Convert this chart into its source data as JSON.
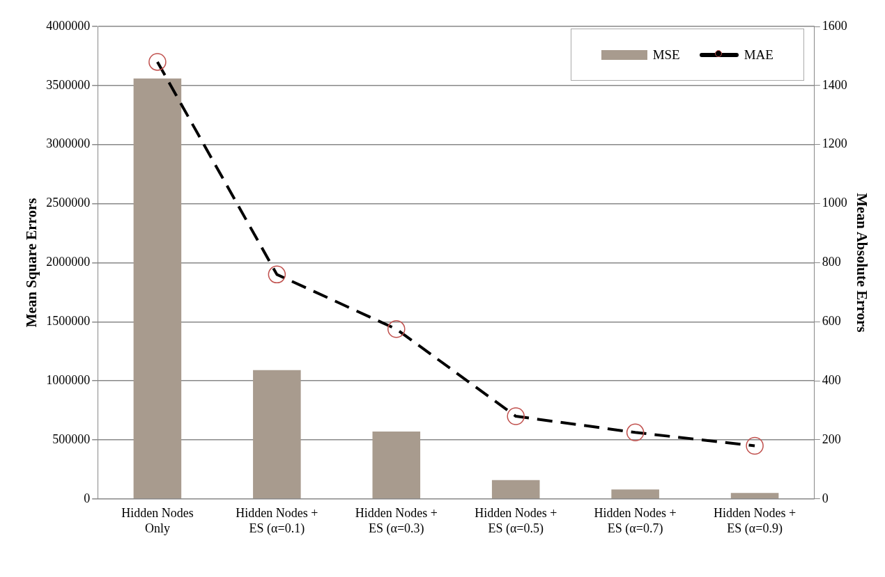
{
  "chart_data": {
    "type": "bar",
    "categories": [
      "Hidden Nodes Only",
      "Hidden Nodes + ES (α=0.1)",
      "Hidden Nodes + ES (α=0.3)",
      "Hidden Nodes + ES (α=0.5)",
      "Hidden Nodes + ES (α=0.7)",
      "Hidden Nodes + ES (α=0.9)"
    ],
    "ylabel": "Mean Square Errors",
    "y2label": "Mean Absolute Errors",
    "series": [
      {
        "name": "MSE",
        "color": "#a89b8e",
        "values": [
          3560000,
          1090000,
          570000,
          160000,
          80000,
          50000
        ]
      },
      {
        "name": "MAE",
        "type": "line",
        "axis": "y2",
        "color": "#000000",
        "marker": "circle",
        "line_style": "dashed",
        "values": [
          1480,
          760,
          575,
          280,
          225,
          180
        ]
      }
    ],
    "ylim": [
      0,
      4000000
    ],
    "yticks": [
      0,
      500000,
      1000000,
      1500000,
      2000000,
      2500000,
      3000000,
      3500000,
      4000000
    ],
    "y2lim": [
      0,
      1600
    ],
    "y2ticks": [
      0,
      200,
      400,
      600,
      800,
      1000,
      1200,
      1400,
      1600
    ],
    "grid": "y",
    "legend": "top right"
  }
}
